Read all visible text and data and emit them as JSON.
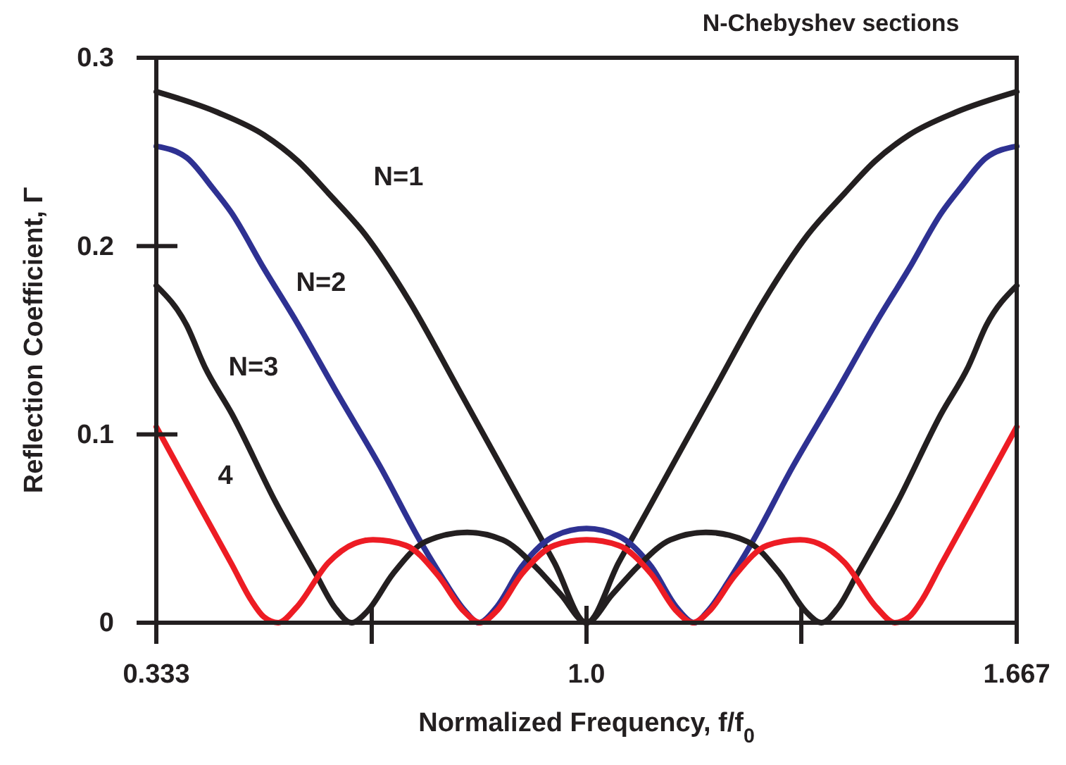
{
  "chart_data": {
    "type": "line",
    "title": "N-Chebyshev sections",
    "xlabel": "Normalized Frequency, f/f$_{0}$",
    "ylabel": "Reflection Coefficient, Γ",
    "xlim": [
      0.333,
      1.667
    ],
    "ylim": [
      0,
      0.3
    ],
    "xticks": [
      {
        "value": 0.333,
        "label": "0.333"
      },
      {
        "value": 0.667,
        "label": null
      },
      {
        "value": 1.0,
        "label": "1.0"
      },
      {
        "value": 1.333,
        "label": null
      },
      {
        "value": 1.667,
        "label": "1.667"
      }
    ],
    "yticks": [
      {
        "value": 0,
        "label": "0"
      },
      {
        "value": 0.1,
        "label": "0.1"
      },
      {
        "value": 0.2,
        "label": "0.2"
      },
      {
        "value": 0.3,
        "label": "0.3"
      }
    ],
    "grid": false,
    "legend": false,
    "marker": "none",
    "line_style": "solid",
    "series": [
      {
        "name": "N=1",
        "color": "#231f20",
        "x": [
          0.333,
          0.428,
          0.5,
          0.553,
          0.6,
          0.657,
          0.725,
          0.8,
          0.9,
          0.95,
          1.0,
          1.05,
          1.1,
          1.2,
          1.275,
          1.343,
          1.4,
          1.447,
          1.5,
          1.572,
          1.667
        ],
        "values": [
          0.282,
          0.271,
          0.259,
          0.245,
          0.228,
          0.206,
          0.171,
          0.125,
          0.063,
          0.032,
          0.0,
          0.032,
          0.063,
          0.125,
          0.171,
          0.206,
          0.228,
          0.245,
          0.259,
          0.271,
          0.282
        ]
      },
      {
        "name": "N=2",
        "color": "#2e3192",
        "x": [
          0.333,
          0.38,
          0.42,
          0.449,
          0.5,
          0.55,
          0.615,
          0.68,
          0.746,
          0.78,
          0.81,
          0.833,
          0.86,
          0.9,
          0.95,
          1.0,
          1.05,
          1.1,
          1.14,
          1.167,
          1.19,
          1.22,
          1.254,
          1.32,
          1.385,
          1.45,
          1.5,
          1.551,
          1.58,
          1.62,
          1.667
        ],
        "values": [
          0.253,
          0.247,
          0.231,
          0.218,
          0.188,
          0.16,
          0.121,
          0.083,
          0.041,
          0.022,
          0.007,
          0.0,
          0.008,
          0.03,
          0.046,
          0.05,
          0.046,
          0.03,
          0.008,
          0.0,
          0.007,
          0.022,
          0.041,
          0.083,
          0.121,
          0.16,
          0.188,
          0.218,
          0.231,
          0.247,
          0.253
        ]
      },
      {
        "name": "N=3",
        "color": "#231f20",
        "x": [
          0.333,
          0.38,
          0.408,
          0.45,
          0.518,
          0.58,
          0.61,
          0.636,
          0.66,
          0.7,
          0.75,
          0.815,
          0.87,
          0.92,
          0.96,
          1.0,
          1.04,
          1.08,
          1.13,
          1.185,
          1.25,
          1.3,
          1.34,
          1.364,
          1.39,
          1.42,
          1.482,
          1.55,
          1.592,
          1.62,
          1.667
        ],
        "values": [
          0.179,
          0.158,
          0.136,
          0.111,
          0.064,
          0.026,
          0.008,
          0.0,
          0.006,
          0.026,
          0.043,
          0.048,
          0.044,
          0.03,
          0.015,
          0.0,
          0.015,
          0.03,
          0.044,
          0.048,
          0.043,
          0.026,
          0.006,
          0.0,
          0.008,
          0.026,
          0.064,
          0.111,
          0.136,
          0.158,
          0.179
        ]
      },
      {
        "name": "4",
        "color": "#ed1c24",
        "x": [
          0.333,
          0.4,
          0.45,
          0.48,
          0.5,
          0.522,
          0.55,
          0.6,
          0.64,
          0.669,
          0.72,
          0.77,
          0.81,
          0.835,
          0.86,
          0.9,
          0.95,
          1.0,
          1.05,
          1.1,
          1.14,
          1.165,
          1.19,
          1.23,
          1.28,
          1.331,
          1.36,
          1.4,
          1.45,
          1.478,
          1.5,
          1.52,
          1.55,
          1.6,
          1.667
        ],
        "values": [
          0.104,
          0.062,
          0.031,
          0.012,
          0.003,
          0.0,
          0.008,
          0.032,
          0.042,
          0.044,
          0.041,
          0.025,
          0.006,
          0.0,
          0.006,
          0.026,
          0.041,
          0.044,
          0.041,
          0.026,
          0.006,
          0.0,
          0.006,
          0.025,
          0.041,
          0.044,
          0.042,
          0.032,
          0.008,
          0.0,
          0.003,
          0.012,
          0.031,
          0.062,
          0.104
        ]
      }
    ]
  }
}
